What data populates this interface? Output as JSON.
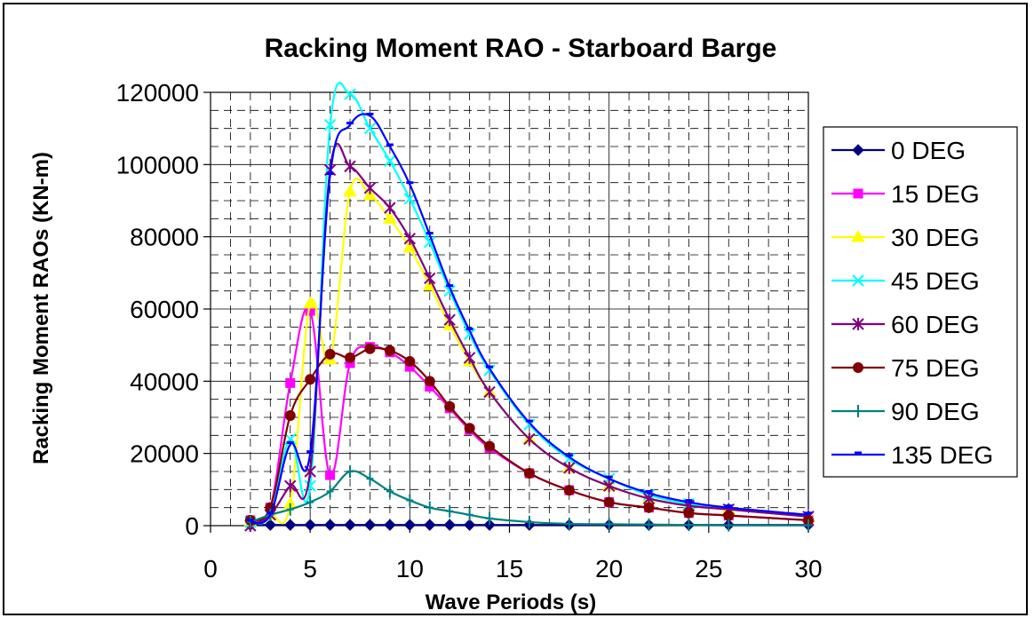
{
  "chart_data": {
    "type": "line",
    "title": "Racking Moment RAO - Starboard Barge",
    "xlabel": "Wave Periods (s)",
    "ylabel": "Racking Moment RAOs (KN-m)",
    "xlim": [
      0,
      30
    ],
    "ylim": [
      0,
      120000
    ],
    "x_ticks": [
      0,
      5,
      10,
      15,
      20,
      25,
      30
    ],
    "y_ticks": [
      0,
      20000,
      40000,
      60000,
      80000,
      100000,
      120000
    ],
    "x_tick_labels": [
      "0",
      "5",
      "10",
      "15",
      "20",
      "25",
      "30"
    ],
    "y_tick_labels": [
      "0",
      "20000",
      "40000",
      "60000",
      "80000",
      "100000",
      "120000"
    ],
    "grid": true,
    "legend_position": "right",
    "series": [
      {
        "name": "0 DEG",
        "color": "#000080",
        "marker": "diamond",
        "x": [
          2,
          3,
          4,
          5,
          6,
          7,
          8,
          9,
          10,
          11,
          12,
          13,
          14,
          16,
          18,
          20,
          22,
          24,
          26,
          30
        ],
        "y": [
          200,
          200,
          200,
          200,
          200,
          200,
          200,
          200,
          200,
          200,
          200,
          200,
          200,
          200,
          200,
          200,
          200,
          200,
          200,
          200
        ]
      },
      {
        "name": "15 DEG",
        "color": "#ff00ff",
        "marker": "square",
        "x": [
          2,
          3,
          4,
          5,
          6,
          7,
          8,
          9,
          10,
          11,
          12,
          13,
          14,
          16,
          18,
          20,
          22,
          24,
          26,
          30
        ],
        "y": [
          1500,
          5000,
          39500,
          59500,
          14000,
          45000,
          49500,
          48000,
          44000,
          38500,
          32500,
          26500,
          21500,
          14500,
          9800,
          6500,
          5000,
          3500,
          2800,
          1500
        ]
      },
      {
        "name": "30 DEG",
        "color": "#ffff00",
        "marker": "triangle",
        "x": [
          2,
          3,
          4,
          5,
          6,
          7,
          8,
          9,
          10,
          11,
          12,
          13,
          14,
          16,
          18,
          20,
          22,
          24,
          26,
          30
        ],
        "y": [
          1000,
          3000,
          6000,
          61500,
          46000,
          92500,
          91500,
          85000,
          77000,
          66500,
          55500,
          45500,
          37000,
          24000,
          16000,
          11000,
          7500,
          5500,
          4500,
          2500
        ]
      },
      {
        "name": "45 DEG",
        "color": "#00ffff",
        "marker": "x",
        "x": [
          2,
          3,
          4,
          5,
          6,
          7,
          8,
          9,
          10,
          11,
          12,
          13,
          14,
          16,
          18,
          20,
          22,
          24,
          26,
          30
        ],
        "y": [
          1000,
          3000,
          24000,
          11000,
          111000,
          119500,
          110000,
          101000,
          90500,
          78500,
          65000,
          53000,
          43000,
          28000,
          18500,
          13000,
          8500,
          6000,
          4500,
          2500
        ]
      },
      {
        "name": "60 DEG",
        "color": "#800080",
        "marker": "star",
        "x": [
          2,
          3,
          4,
          5,
          6,
          7,
          8,
          9,
          10,
          11,
          12,
          13,
          14,
          16,
          18,
          20,
          22,
          24,
          26,
          30
        ],
        "y": [
          0,
          3000,
          11000,
          15000,
          98500,
          99500,
          93500,
          88000,
          79500,
          68500,
          57000,
          46500,
          37000,
          24000,
          16000,
          11000,
          7500,
          5500,
          4500,
          2500
        ]
      },
      {
        "name": "75 DEG",
        "color": "#800000",
        "marker": "circle",
        "x": [
          2,
          3,
          4,
          5,
          6,
          7,
          8,
          9,
          10,
          11,
          12,
          13,
          14,
          16,
          18,
          20,
          22,
          24,
          26,
          30
        ],
        "y": [
          1500,
          5000,
          30500,
          40500,
          47500,
          46500,
          49000,
          48500,
          45500,
          40000,
          33000,
          27000,
          22000,
          14500,
          9800,
          6500,
          5000,
          3500,
          2800,
          1500
        ]
      },
      {
        "name": "90 DEG",
        "color": "#008080",
        "marker": "plus",
        "x": [
          2,
          3,
          4,
          5,
          6,
          7,
          8,
          9,
          10,
          11,
          12,
          13,
          14,
          16,
          18,
          20,
          22,
          24,
          26,
          30
        ],
        "y": [
          1000,
          3000,
          4500,
          6500,
          9500,
          15000,
          13000,
          9500,
          7000,
          5000,
          4000,
          3000,
          2000,
          1000,
          500,
          400,
          300,
          200,
          100,
          100
        ]
      },
      {
        "name": "135 DEG",
        "color": "#0000ff",
        "marker": "dash",
        "x": [
          2,
          3,
          4,
          5,
          6,
          7,
          8,
          9,
          10,
          11,
          12,
          13,
          14,
          16,
          18,
          20,
          22,
          24,
          26,
          30
        ],
        "y": [
          1000,
          3000,
          22500,
          20000,
          97000,
          111000,
          113500,
          105000,
          94500,
          80500,
          66000,
          54000,
          43500,
          28500,
          19000,
          13000,
          9000,
          6500,
          5000,
          3000
        ]
      }
    ]
  }
}
